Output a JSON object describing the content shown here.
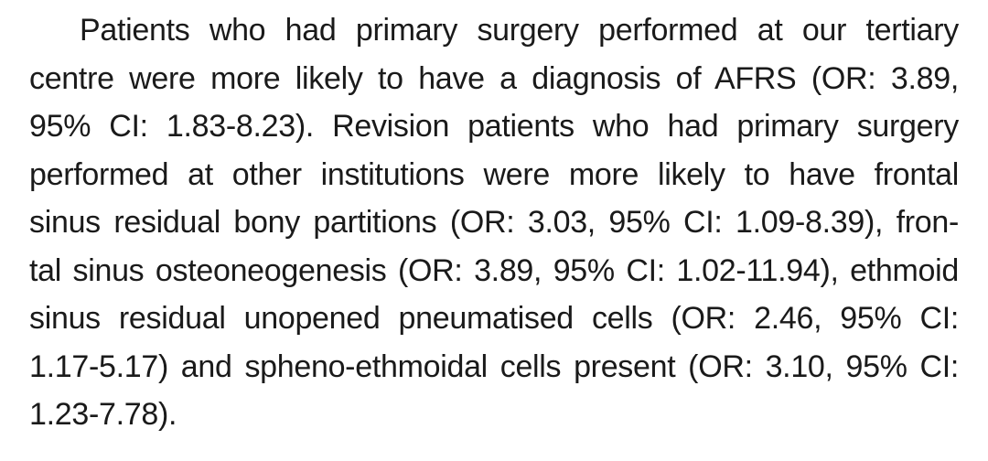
{
  "page": {
    "background_color": "#ffffff",
    "text_color": "#1a1a1a"
  },
  "paragraph": {
    "full_text": "Patients who had primary surgery performed at our tertiary centre were more likely to have a diagnosis of AFRS (OR: 3.89, 95% CI: 1.83-8.23). Revision patients who had primary surgery performed at other institutions were more likely to have frontal sinus residual bony partitions (OR: 3.03, 95% CI: 1.09-8.39), frontal sinus osteoneogenesis (OR: 3.89, 95% CI: 1.02-11.94), ethmoid sinus residual unopened pneumatised cells (OR: 2.46, 95% CI: 1.17-5.17) and spheno-ethmoidal cells present (OR: 3.10, 95% CI: 1.23-7.78).",
    "lines": [
      "Patients who had primary surgery performed at our tertiary",
      "centre were more likely to have a diagnosis of AFRS (OR: 3.89,",
      "95% CI: 1.83-8.23). Revision patients who had primary surgery",
      "performed at other institutions were more likely to have frontal",
      "sinus residual bony partitions (OR: 3.03, 95% CI: 1.09-8.39), fron-",
      "tal sinus osteoneogenesis (OR: 3.89, 95% CI: 1.02-11.94), ethmoid",
      "sinus residual unopened pneumatised cells (OR: 2.46, 95% CI:",
      "1.17-5.17) and spheno-ethmoidal cells present (OR: 3.10, 95% CI:",
      "1.23-7.78)."
    ]
  }
}
